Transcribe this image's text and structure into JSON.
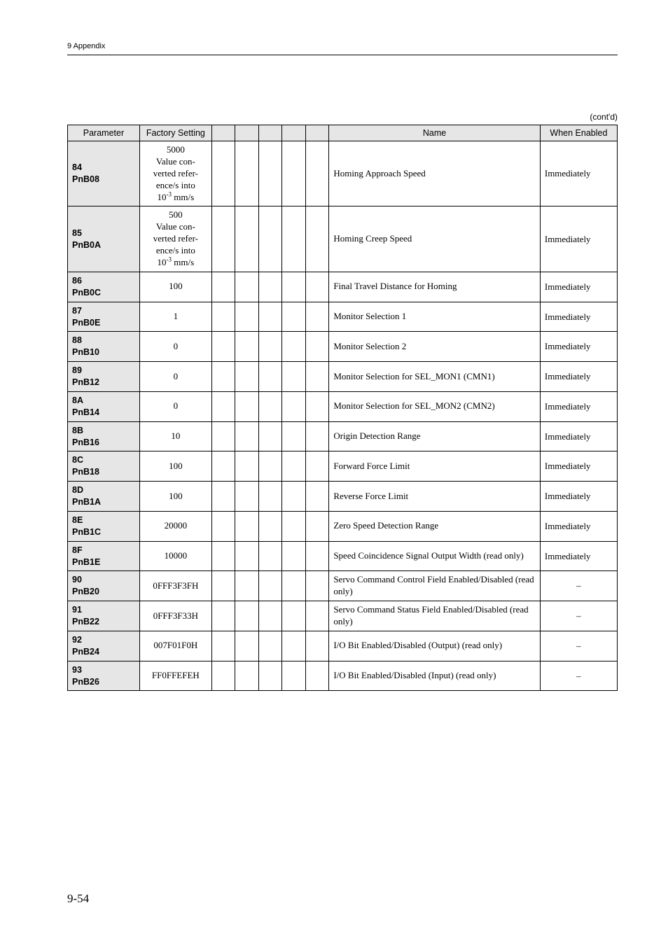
{
  "header": {
    "section": "9  Appendix",
    "contd": "(cont'd)",
    "page": "9-54"
  },
  "table": {
    "headers": {
      "parameter": "Parameter",
      "factory": "Factory Setting",
      "name": "Name",
      "when": "When Enabled"
    },
    "rows": [
      {
        "param1": "84",
        "param2": "PnB08",
        "factory_raw": "5000\nValue con-\nverted refer-\nence/s into\n10^-3 mm/s",
        "factory_type": "multi",
        "factory_num": "5000",
        "name": "Homing Approach Speed",
        "when": "Immediately"
      },
      {
        "param1": "85",
        "param2": "PnB0A",
        "factory_raw": "500\nValue con-\nverted refer-\nence/s into\n10^-3 mm/s",
        "factory_type": "multi",
        "factory_num": "500",
        "name": "Homing Creep Speed",
        "when": "Immediately"
      },
      {
        "param1": "86",
        "param2": "PnB0C",
        "factory": "100",
        "name": "Final Travel Distance for Homing",
        "when": "Immediately"
      },
      {
        "param1": "87",
        "param2": "PnB0E",
        "factory": "1",
        "name": "Monitor Selection 1",
        "when": "Immediately"
      },
      {
        "param1": "88",
        "param2": "PnB10",
        "factory": "0",
        "name": "Monitor Selection 2",
        "when": "Immediately"
      },
      {
        "param1": "89",
        "param2": "PnB12",
        "factory": "0",
        "name": "Monitor Selection for SEL_MON1 (CMN1)",
        "when": "Immediately"
      },
      {
        "param1": "8A",
        "param2": "PnB14",
        "factory": "0",
        "name": "Monitor Selection for SEL_MON2 (CMN2)",
        "when": "Immediately"
      },
      {
        "param1": "8B",
        "param2": "PnB16",
        "factory": "10",
        "name": "Origin Detection Range",
        "when": "Immediately"
      },
      {
        "param1": "8C",
        "param2": "PnB18",
        "factory": "100",
        "name": "Forward Force Limit",
        "when": "Immediately"
      },
      {
        "param1": "8D",
        "param2": "PnB1A",
        "factory": "100",
        "name": "Reverse Force Limit",
        "when": "Immediately"
      },
      {
        "param1": "8E",
        "param2": "PnB1C",
        "factory": "20000",
        "name": "Zero Speed Detection Range",
        "when": "Immediately"
      },
      {
        "param1": "8F",
        "param2": "PnB1E",
        "factory": "10000",
        "name": "Speed Coincidence Signal Output Width (read only)",
        "when": "Immediately"
      },
      {
        "param1": "90",
        "param2": "PnB20",
        "factory": "0FFF3F3FH",
        "name": "Servo Command Control Field Enabled/Disabled (read only)",
        "when": "–",
        "when_center": true
      },
      {
        "param1": "91",
        "param2": "PnB22",
        "factory": "0FFF3F33H",
        "name": "Servo Command Status Field Enabled/Disabled (read only)",
        "when": "–",
        "when_center": true
      },
      {
        "param1": "92",
        "param2": "PnB24",
        "factory": "007F01F0H",
        "name": "I/O Bit Enabled/Disabled (Output) (read only)",
        "when": "–",
        "when_center": true
      },
      {
        "param1": "93",
        "param2": "PnB26",
        "factory": "FF0FFEFEH",
        "name": "I/O Bit Enabled/Disabled (Input) (read only)",
        "when": "–",
        "when_center": true
      }
    ],
    "multiline_parts": {
      "l1": "Value con-",
      "l2": "verted refer-",
      "l3": "ence/s into",
      "l4a": "10",
      "l4b": "-3",
      "l4c": " mm/s"
    }
  }
}
